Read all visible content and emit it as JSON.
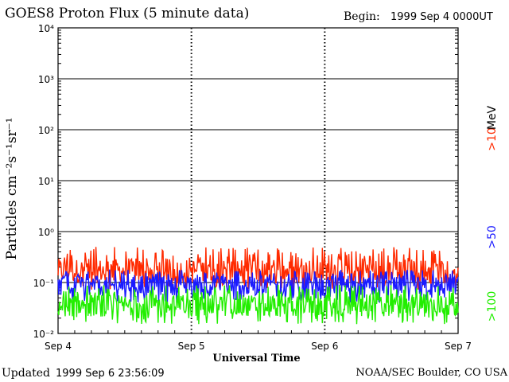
{
  "header": {
    "title": "GOES8 Proton Flux (5 minute data)",
    "begin_label": "Begin:",
    "begin_value": "1999 Sep 4 0000UT"
  },
  "footer": {
    "updated_label": "Updated",
    "updated_value": "1999 Sep  6 23:56:09",
    "credit": "NOAA/SEC Boulder, CO USA"
  },
  "chart_data": {
    "type": "line",
    "title": "GOES8 Proton Flux (5 minute data)",
    "xlabel": "Universal Time",
    "ylabel": "Particles cm⁻²s⁻¹sr⁻¹",
    "yscale": "log",
    "ylim": [
      0.01,
      10000
    ],
    "y_ticks": [
      "10⁻²",
      "10⁻¹",
      "10⁰",
      "10¹",
      "10²",
      "10³",
      "10⁴"
    ],
    "x_ticks": [
      "Sep 4",
      "Sep 5",
      "Sep 6",
      "Sep 7"
    ],
    "x_tick_values": [
      0,
      1,
      2,
      3
    ],
    "grid": true,
    "series": [
      {
        "name": ">10 MeV",
        "label": ">10",
        "unit_label": "MeV",
        "color": "#ff2a00",
        "typical": 0.17,
        "low": 0.07,
        "high": 0.5
      },
      {
        "name": ">50",
        "label": ">50",
        "color": "#1a1aff",
        "typical": 0.085,
        "low": 0.04,
        "high": 0.18
      },
      {
        "name": ">100",
        "label": ">100",
        "color": "#22ee00",
        "typical": 0.035,
        "low": 0.015,
        "high": 0.09
      }
    ]
  }
}
